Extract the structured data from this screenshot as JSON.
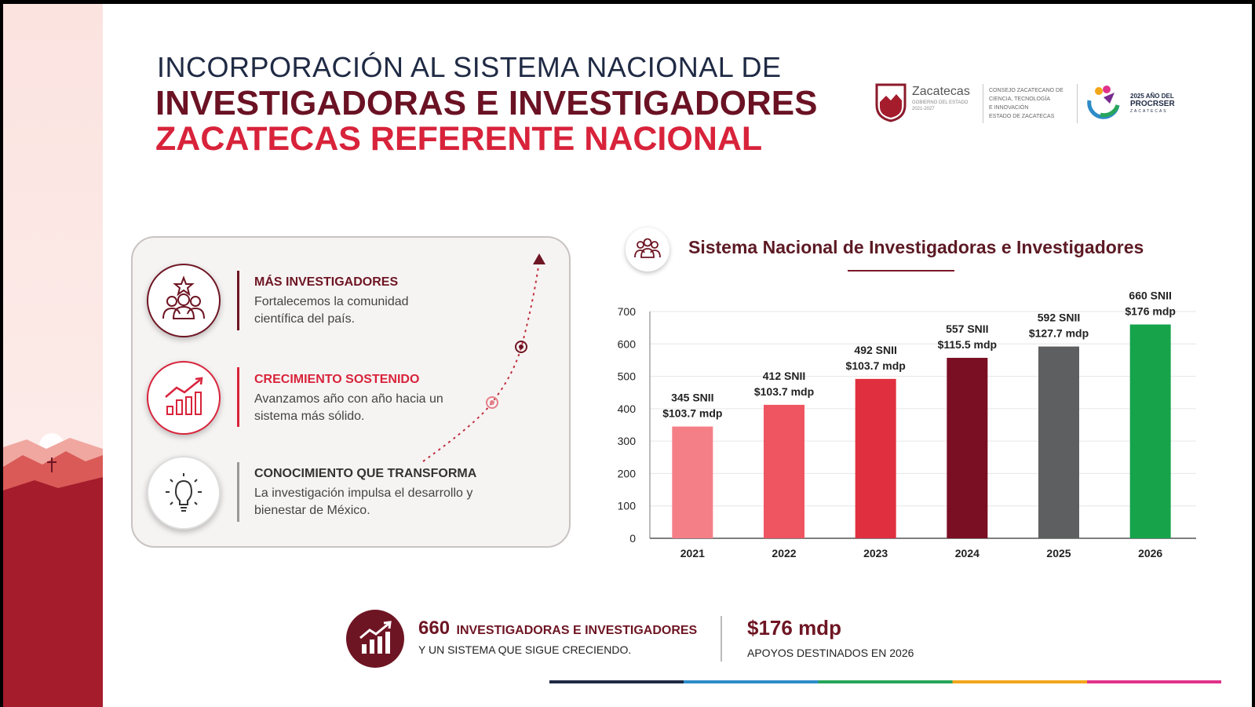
{
  "header": {
    "title_line1": "INCORPORACIÓN AL SISTEMA NACIONAL DE",
    "title_line2": "INVESTIGADORAS E INVESTIGADORES",
    "title_line3": "ZACATECAS REFERENTE NACIONAL"
  },
  "logos": {
    "zacatecas_name": "Zacatecas",
    "zacatecas_sub1": "GOBIERNO DEL ESTADO",
    "zacatecas_sub2": "2021-2027",
    "council_lines": [
      "CONSEJO ZACATECANO DE",
      "CIENCIA, TECNOLOGÍA",
      "E INNOVACIÓN",
      "ESTADO DE ZACATECAS"
    ],
    "year_line1": "2025 AÑO DEL",
    "year_line2": "PROCRSER",
    "year_line3": "ZACATECAS"
  },
  "features": [
    {
      "title": "MÁS INVESTIGADORES",
      "desc": "Fortalecemos la comunidad científica del país.",
      "icon": "people-star-icon",
      "color": "#6e1523"
    },
    {
      "title": "CRECIMIENTO SOSTENIDO",
      "desc": "Avanzamos año con año hacia un sistema más sólido.",
      "icon": "growth-chart-icon",
      "color": "#d8233b"
    },
    {
      "title": "CONOCIMIENTO QUE TRANSFORMA",
      "desc": "La investigación impulsa el desarrollo y bienestar de México.",
      "icon": "lightbulb-icon",
      "color": "#333333"
    }
  ],
  "chart_section": {
    "title": "Sistema Nacional de Investigadoras e Investigadores",
    "icon": "people-group-icon"
  },
  "chart_data": {
    "type": "bar",
    "title": "Sistema Nacional de Investigadoras e Investigadores",
    "categories": [
      "2021",
      "2022",
      "2023",
      "2024",
      "2025",
      "2026"
    ],
    "values": [
      345,
      412,
      492,
      557,
      592,
      660
    ],
    "labels_top": [
      "345 SNII",
      "412 SNII",
      "492 SNII",
      "557 SNII",
      "592 SNII",
      "660 SNII"
    ],
    "labels_bottom": [
      "$103.7 mdp",
      "$103.7 mdp",
      "$103.7 mdp",
      "$115.5 mdp",
      "$127.7 mdp",
      "$176 mdp"
    ],
    "colors": [
      "#f57f87",
      "#ee5560",
      "#e0303f",
      "#7a0e22",
      "#5d5f60",
      "#16a34a"
    ],
    "ylim": [
      0,
      700
    ],
    "yticks": [
      0,
      100,
      200,
      300,
      400,
      500,
      600,
      700
    ],
    "grid": true,
    "xlabel": "",
    "ylabel": ""
  },
  "summary": {
    "count": "660",
    "count_label": "INVESTIGADORAS E INVESTIGADORES",
    "sub": "Y UN SISTEMA QUE SIGUE CRECIENDO.",
    "amount": "$176 mdp",
    "amount_label": "APOYOS DESTINADOS EN 2026",
    "icon": "bar-growth-icon"
  }
}
